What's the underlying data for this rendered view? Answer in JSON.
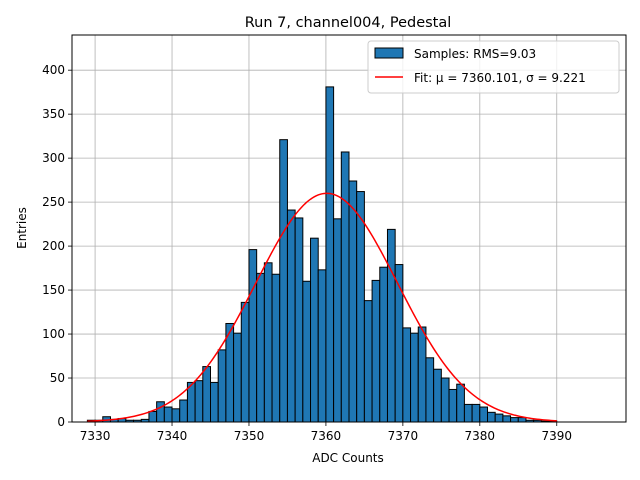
{
  "chart_data": {
    "type": "bar",
    "title": "Run 7, channel004, Pedestal",
    "xlabel": "ADC Counts",
    "ylabel": "Entries",
    "xlim": [
      7327,
      7399
    ],
    "ylim": [
      0,
      440
    ],
    "xticks": [
      7330,
      7340,
      7350,
      7360,
      7370,
      7380,
      7390
    ],
    "yticks": [
      0,
      50,
      100,
      150,
      200,
      250,
      300,
      350,
      400
    ],
    "grid": true,
    "legend_position": "top-right",
    "histogram": {
      "name": "Samples: RMS=9.03",
      "color": "#1f77b4",
      "edge_color": "#000000",
      "bin_start": 7329,
      "bin_width": 1,
      "counts": [
        2,
        2,
        6,
        3,
        4,
        2,
        2,
        3,
        12,
        23,
        17,
        15,
        25,
        45,
        47,
        63,
        45,
        82,
        112,
        101,
        136,
        196,
        169,
        181,
        168,
        321,
        241,
        232,
        160,
        209,
        173,
        381,
        231,
        307,
        274,
        262,
        138,
        161,
        176,
        219,
        179,
        107,
        101,
        108,
        73,
        60,
        50,
        37,
        43,
        20,
        20,
        17,
        11,
        9,
        7,
        5,
        5,
        2,
        2,
        1,
        1
      ]
    },
    "fit": {
      "name": "Fit: μ = 7360.101, σ = 9.221",
      "color": "#ff0000",
      "mu": 7360.101,
      "sigma": 9.221,
      "amplitude": 260,
      "x_range": [
        7329,
        7390
      ]
    }
  }
}
